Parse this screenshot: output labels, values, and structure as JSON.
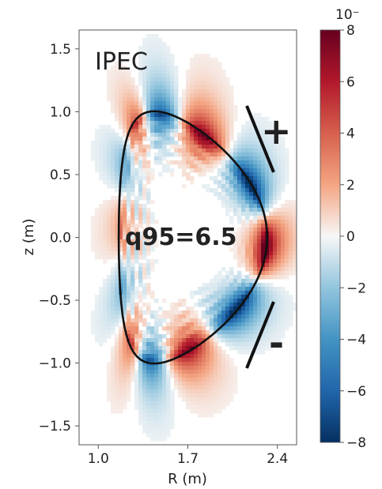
{
  "chart_data": {
    "type": "heatmap",
    "panel_title": "IPEC",
    "annotation": "q95=6.5",
    "xlabel": "R (m)",
    "ylabel": "z (m)",
    "xlim": [
      0.85,
      2.55
    ],
    "ylim": [
      -1.65,
      1.65
    ],
    "x_ticks": [
      1.0,
      1.7,
      2.4
    ],
    "x_tick_labels": [
      "1.0",
      "1.7",
      "2.4"
    ],
    "y_ticks": [
      -1.5,
      -1.0,
      -0.5,
      0.0,
      0.5,
      1.0,
      1.5
    ],
    "y_tick_labels": [
      "−1.5",
      "−1.0",
      "−0.5",
      "0.0",
      "0.5",
      "1.0",
      "1.5"
    ],
    "colorbar": {
      "range": [
        -8,
        8
      ],
      "ticks": [
        -8,
        -6,
        -4,
        -2,
        0,
        2,
        4,
        6,
        8
      ],
      "tick_labels": [
        "−8",
        "−6",
        "−4",
        "−2",
        "0",
        "2",
        "4",
        "6",
        "8"
      ],
      "exponent_label": "10⁻",
      "colormap": "RdBu_r",
      "color_high": "#67001f",
      "color_mid": "#f7f7f7",
      "color_low": "#053061"
    },
    "boundary_shape": {
      "R0": 1.74,
      "a": 0.58,
      "kappa": 1.73,
      "delta": 0.55
    },
    "sign_labels": [
      {
        "text": "+",
        "near": "upper-right"
      },
      {
        "text": "-",
        "near": "lower-right"
      }
    ],
    "grid": false
  }
}
